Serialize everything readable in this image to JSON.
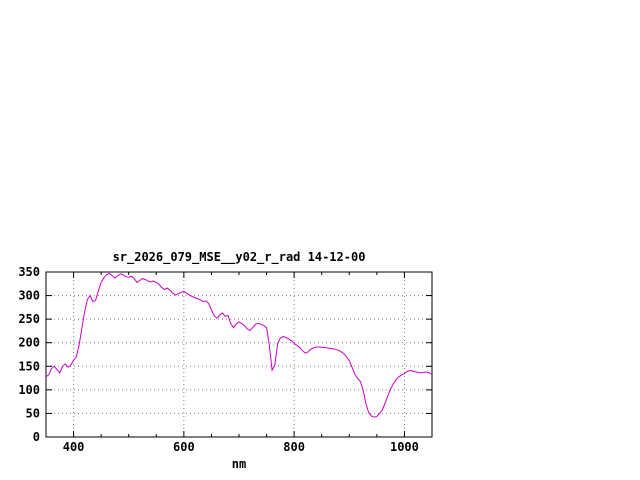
{
  "window": {
    "background_color": "#ffffff"
  },
  "chart_data": {
    "type": "line",
    "title": "sr_2026_079_MSE__y02_r_rad 14-12-00",
    "xlabel": "nm",
    "ylabel": "",
    "xlim": [
      350,
      1050
    ],
    "ylim": [
      0,
      350
    ],
    "xticks": [
      400,
      600,
      800,
      1000
    ],
    "xminor_step": 50,
    "yticks": [
      0,
      50,
      100,
      150,
      200,
      250,
      300,
      350
    ],
    "grid": true,
    "legend": "none",
    "line_color": "#cc00cc",
    "series": [
      {
        "name": "sr_2026_079_MSE__y02_r_rad",
        "x": [
          350,
          355,
          360,
          365,
          370,
          375,
          380,
          385,
          390,
          395,
          400,
          405,
          410,
          415,
          420,
          425,
          430,
          435,
          440,
          445,
          450,
          455,
          460,
          465,
          470,
          475,
          480,
          485,
          490,
          495,
          500,
          505,
          510,
          515,
          520,
          525,
          530,
          535,
          540,
          545,
          550,
          555,
          560,
          565,
          570,
          575,
          580,
          585,
          590,
          595,
          600,
          605,
          610,
          615,
          620,
          625,
          630,
          635,
          640,
          645,
          650,
          655,
          660,
          665,
          670,
          675,
          680,
          685,
          690,
          695,
          700,
          705,
          710,
          715,
          720,
          725,
          730,
          735,
          740,
          745,
          750,
          755,
          760,
          765,
          770,
          775,
          780,
          785,
          790,
          795,
          800,
          805,
          810,
          815,
          820,
          825,
          830,
          835,
          840,
          845,
          850,
          855,
          860,
          865,
          870,
          875,
          880,
          885,
          890,
          895,
          900,
          905,
          910,
          915,
          920,
          925,
          930,
          935,
          940,
          945,
          950,
          955,
          960,
          965,
          970,
          975,
          980,
          985,
          990,
          995,
          1000,
          1005,
          1010,
          1015,
          1020,
          1025,
          1030,
          1035,
          1040,
          1045,
          1050
        ],
        "y": [
          128,
          132,
          145,
          150,
          143,
          136,
          150,
          155,
          148,
          152,
          163,
          170,
          195,
          230,
          265,
          292,
          300,
          287,
          290,
          310,
          328,
          338,
          344,
          347,
          342,
          337,
          342,
          346,
          344,
          340,
          339,
          341,
          336,
          328,
          332,
          336,
          334,
          331,
          329,
          331,
          328,
          324,
          317,
          313,
          316,
          311,
          305,
          301,
          304,
          307,
          309,
          305,
          301,
          298,
          296,
          293,
          291,
          287,
          289,
          283,
          270,
          257,
          252,
          259,
          263,
          256,
          258,
          241,
          232,
          240,
          244,
          241,
          236,
          229,
          226,
          232,
          239,
          241,
          239,
          236,
          232,
          195,
          142,
          152,
          198,
          210,
          213,
          211,
          208,
          204,
          199,
          194,
          190,
          183,
          178,
          180,
          186,
          189,
          191,
          191,
          190,
          190,
          189,
          188,
          187,
          186,
          184,
          181,
          177,
          170,
          162,
          148,
          133,
          124,
          118,
          100,
          72,
          52,
          45,
          42,
          44,
          50,
          58,
          72,
          88,
          102,
          113,
          122,
          128,
          132,
          135,
          139,
          141,
          140,
          138,
          137,
          136,
          137,
          138,
          136,
          134
        ]
      }
    ]
  }
}
